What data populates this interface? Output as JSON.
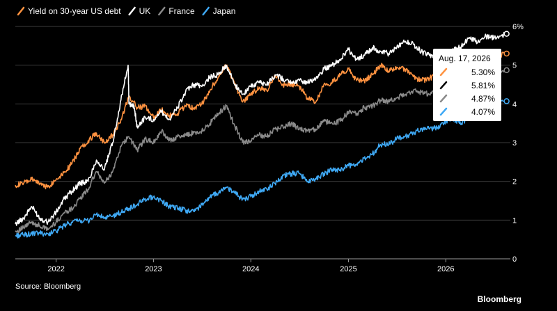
{
  "chart_data": {
    "type": "line",
    "title": "",
    "xlabel": "",
    "ylabel": "",
    "unit": "%",
    "ylim": [
      0,
      6
    ],
    "y_axis_position": "right",
    "y_ticks": [
      0,
      1,
      2,
      3,
      4,
      5,
      6
    ],
    "y_tick_labels": [
      "0",
      "1",
      "2",
      "3",
      "4",
      "5",
      "6%"
    ],
    "xlim": [
      "2021-08-01",
      "2026-08-31"
    ],
    "x_ticks": [
      "2022-01-01",
      "2023-01-01",
      "2024-01-01",
      "2025-01-01",
      "2026-01-01"
    ],
    "x_tick_labels": [
      "2022",
      "2023",
      "2024",
      "2025",
      "2026"
    ],
    "grid": "horizontal",
    "legend_position": "top-left",
    "series": [
      {
        "name": "Yield on 30-year US debt",
        "color": "#ff9240",
        "end_value": 5.3,
        "points": [
          [
            "2021-08-01",
            1.9
          ],
          [
            "2021-09-01",
            1.95
          ],
          [
            "2021-10-01",
            2.05
          ],
          [
            "2021-11-01",
            1.95
          ],
          [
            "2021-12-01",
            1.85
          ],
          [
            "2022-01-01",
            2.05
          ],
          [
            "2022-02-01",
            2.25
          ],
          [
            "2022-03-01",
            2.45
          ],
          [
            "2022-04-01",
            2.85
          ],
          [
            "2022-05-01",
            3.05
          ],
          [
            "2022-06-01",
            3.25
          ],
          [
            "2022-07-01",
            3.0
          ],
          [
            "2022-08-01",
            3.2
          ],
          [
            "2022-09-01",
            3.6
          ],
          [
            "2022-10-01",
            4.2
          ],
          [
            "2022-11-01",
            3.9
          ],
          [
            "2022-12-01",
            3.95
          ],
          [
            "2023-01-01",
            3.65
          ],
          [
            "2023-02-01",
            3.85
          ],
          [
            "2023-03-01",
            3.7
          ],
          [
            "2023-04-01",
            3.75
          ],
          [
            "2023-05-01",
            3.95
          ],
          [
            "2023-06-01",
            3.9
          ],
          [
            "2023-07-01",
            4.0
          ],
          [
            "2023-08-01",
            4.35
          ],
          [
            "2023-09-01",
            4.7
          ],
          [
            "2023-10-01",
            5.0
          ],
          [
            "2023-11-01",
            4.5
          ],
          [
            "2023-12-01",
            4.05
          ],
          [
            "2024-01-01",
            4.25
          ],
          [
            "2024-02-01",
            4.4
          ],
          [
            "2024-03-01",
            4.35
          ],
          [
            "2024-04-01",
            4.75
          ],
          [
            "2024-05-01",
            4.5
          ],
          [
            "2024-06-01",
            4.5
          ],
          [
            "2024-07-01",
            4.45
          ],
          [
            "2024-08-01",
            4.15
          ],
          [
            "2024-09-01",
            4.05
          ],
          [
            "2024-10-01",
            4.5
          ],
          [
            "2024-11-01",
            4.55
          ],
          [
            "2024-12-01",
            4.75
          ],
          [
            "2025-01-01",
            4.9
          ],
          [
            "2025-02-01",
            4.6
          ],
          [
            "2025-03-01",
            4.6
          ],
          [
            "2025-04-01",
            4.75
          ],
          [
            "2025-05-01",
            5.0
          ],
          [
            "2025-06-01",
            4.85
          ],
          [
            "2025-07-01",
            4.95
          ],
          [
            "2025-08-01",
            4.9
          ],
          [
            "2025-09-01",
            4.7
          ],
          [
            "2025-10-01",
            4.6
          ],
          [
            "2025-11-01",
            4.65
          ],
          [
            "2025-12-01",
            4.8
          ],
          [
            "2026-01-01",
            4.85
          ],
          [
            "2026-02-01",
            4.75
          ],
          [
            "2026-03-01",
            4.9
          ],
          [
            "2026-04-01",
            5.0
          ],
          [
            "2026-05-01",
            5.1
          ],
          [
            "2026-06-01",
            5.0
          ],
          [
            "2026-07-01",
            5.2
          ],
          [
            "2026-08-17",
            5.3
          ]
        ]
      },
      {
        "name": "UK",
        "color": "#ffffff",
        "end_value": 5.81,
        "points": [
          [
            "2021-08-01",
            0.9
          ],
          [
            "2021-09-01",
            1.05
          ],
          [
            "2021-10-01",
            1.35
          ],
          [
            "2021-11-01",
            1.05
          ],
          [
            "2021-12-01",
            0.95
          ],
          [
            "2022-01-01",
            1.2
          ],
          [
            "2022-02-01",
            1.55
          ],
          [
            "2022-03-01",
            1.75
          ],
          [
            "2022-04-01",
            1.95
          ],
          [
            "2022-05-01",
            2.0
          ],
          [
            "2022-06-01",
            2.55
          ],
          [
            "2022-07-01",
            2.3
          ],
          [
            "2022-08-01",
            3.0
          ],
          [
            "2022-09-01",
            4.1
          ],
          [
            "2022-09-28",
            5.0
          ],
          [
            "2022-10-01",
            4.0
          ],
          [
            "2022-10-20",
            3.95
          ],
          [
            "2022-11-01",
            3.4
          ],
          [
            "2022-12-01",
            3.65
          ],
          [
            "2023-01-01",
            3.6
          ],
          [
            "2023-02-01",
            3.8
          ],
          [
            "2023-03-01",
            3.6
          ],
          [
            "2023-04-01",
            3.9
          ],
          [
            "2023-05-01",
            4.3
          ],
          [
            "2023-06-01",
            4.5
          ],
          [
            "2023-07-01",
            4.45
          ],
          [
            "2023-08-01",
            4.7
          ],
          [
            "2023-09-01",
            4.75
          ],
          [
            "2023-10-01",
            5.0
          ],
          [
            "2023-11-01",
            4.5
          ],
          [
            "2023-12-01",
            4.25
          ],
          [
            "2024-01-01",
            4.45
          ],
          [
            "2024-02-01",
            4.55
          ],
          [
            "2024-03-01",
            4.5
          ],
          [
            "2024-04-01",
            4.75
          ],
          [
            "2024-05-01",
            4.65
          ],
          [
            "2024-06-01",
            4.55
          ],
          [
            "2024-07-01",
            4.6
          ],
          [
            "2024-08-01",
            4.55
          ],
          [
            "2024-09-01",
            4.65
          ],
          [
            "2024-10-01",
            4.9
          ],
          [
            "2024-11-01",
            5.0
          ],
          [
            "2024-12-01",
            5.15
          ],
          [
            "2025-01-01",
            5.4
          ],
          [
            "2025-02-01",
            5.15
          ],
          [
            "2025-03-01",
            5.25
          ],
          [
            "2025-04-01",
            5.45
          ],
          [
            "2025-05-01",
            5.35
          ],
          [
            "2025-06-01",
            5.3
          ],
          [
            "2025-07-01",
            5.45
          ],
          [
            "2025-08-01",
            5.6
          ],
          [
            "2025-09-01",
            5.55
          ],
          [
            "2025-10-01",
            5.35
          ],
          [
            "2025-11-01",
            5.25
          ],
          [
            "2025-12-01",
            5.2
          ],
          [
            "2026-01-01",
            5.3
          ],
          [
            "2026-02-01",
            5.4
          ],
          [
            "2026-03-01",
            5.5
          ],
          [
            "2026-04-01",
            5.7
          ],
          [
            "2026-05-01",
            5.6
          ],
          [
            "2026-06-01",
            5.75
          ],
          [
            "2026-07-01",
            5.7
          ],
          [
            "2026-08-17",
            5.81
          ]
        ]
      },
      {
        "name": "France",
        "color": "#8a8a8a",
        "end_value": 4.87,
        "points": [
          [
            "2021-08-01",
            0.7
          ],
          [
            "2021-09-01",
            0.8
          ],
          [
            "2021-10-01",
            0.95
          ],
          [
            "2021-11-01",
            0.85
          ],
          [
            "2021-12-01",
            0.75
          ],
          [
            "2022-01-01",
            0.95
          ],
          [
            "2022-02-01",
            1.2
          ],
          [
            "2022-03-01",
            1.3
          ],
          [
            "2022-04-01",
            1.55
          ],
          [
            "2022-05-01",
            1.8
          ],
          [
            "2022-06-01",
            2.25
          ],
          [
            "2022-07-01",
            1.95
          ],
          [
            "2022-08-01",
            2.25
          ],
          [
            "2022-09-01",
            2.9
          ],
          [
            "2022-10-01",
            3.15
          ],
          [
            "2022-11-01",
            2.8
          ],
          [
            "2022-12-01",
            3.1
          ],
          [
            "2023-01-01",
            3.0
          ],
          [
            "2023-02-01",
            3.3
          ],
          [
            "2023-03-01",
            3.05
          ],
          [
            "2023-04-01",
            3.15
          ],
          [
            "2023-05-01",
            3.2
          ],
          [
            "2023-06-01",
            3.25
          ],
          [
            "2023-07-01",
            3.3
          ],
          [
            "2023-08-01",
            3.5
          ],
          [
            "2023-09-01",
            3.75
          ],
          [
            "2023-10-01",
            3.95
          ],
          [
            "2023-11-01",
            3.45
          ],
          [
            "2023-12-01",
            3.0
          ],
          [
            "2024-01-01",
            3.05
          ],
          [
            "2024-02-01",
            3.2
          ],
          [
            "2024-03-01",
            3.15
          ],
          [
            "2024-04-01",
            3.35
          ],
          [
            "2024-05-01",
            3.4
          ],
          [
            "2024-06-01",
            3.5
          ],
          [
            "2024-07-01",
            3.35
          ],
          [
            "2024-08-01",
            3.3
          ],
          [
            "2024-09-01",
            3.35
          ],
          [
            "2024-10-01",
            3.55
          ],
          [
            "2024-11-01",
            3.5
          ],
          [
            "2024-12-01",
            3.55
          ],
          [
            "2025-01-01",
            3.8
          ],
          [
            "2025-02-01",
            3.75
          ],
          [
            "2025-03-01",
            3.9
          ],
          [
            "2025-04-01",
            3.95
          ],
          [
            "2025-05-01",
            4.1
          ],
          [
            "2025-06-01",
            4.05
          ],
          [
            "2025-07-01",
            4.15
          ],
          [
            "2025-08-01",
            4.25
          ],
          [
            "2025-09-01",
            4.35
          ],
          [
            "2025-10-01",
            4.3
          ],
          [
            "2025-11-01",
            4.25
          ],
          [
            "2025-12-01",
            4.3
          ],
          [
            "2026-01-01",
            4.4
          ],
          [
            "2026-02-01",
            4.45
          ],
          [
            "2026-03-01",
            4.55
          ],
          [
            "2026-04-01",
            4.7
          ],
          [
            "2026-05-01",
            4.65
          ],
          [
            "2026-06-01",
            4.75
          ],
          [
            "2026-07-01",
            4.8
          ],
          [
            "2026-08-17",
            4.87
          ]
        ]
      },
      {
        "name": "Japan",
        "color": "#3fa9f5",
        "end_value": 4.07,
        "points": [
          [
            "2021-08-01",
            0.6
          ],
          [
            "2021-09-01",
            0.62
          ],
          [
            "2021-10-01",
            0.64
          ],
          [
            "2021-11-01",
            0.66
          ],
          [
            "2021-12-01",
            0.65
          ],
          [
            "2022-01-01",
            0.72
          ],
          [
            "2022-02-01",
            0.85
          ],
          [
            "2022-03-01",
            0.95
          ],
          [
            "2022-04-01",
            0.98
          ],
          [
            "2022-05-01",
            0.98
          ],
          [
            "2022-06-01",
            1.15
          ],
          [
            "2022-07-01",
            1.05
          ],
          [
            "2022-08-01",
            1.1
          ],
          [
            "2022-09-01",
            1.2
          ],
          [
            "2022-10-01",
            1.3
          ],
          [
            "2022-11-01",
            1.4
          ],
          [
            "2022-12-01",
            1.55
          ],
          [
            "2023-01-01",
            1.6
          ],
          [
            "2023-02-01",
            1.5
          ],
          [
            "2023-03-01",
            1.35
          ],
          [
            "2023-04-01",
            1.3
          ],
          [
            "2023-05-01",
            1.25
          ],
          [
            "2023-06-01",
            1.22
          ],
          [
            "2023-07-01",
            1.4
          ],
          [
            "2023-08-01",
            1.6
          ],
          [
            "2023-09-01",
            1.7
          ],
          [
            "2023-10-01",
            1.85
          ],
          [
            "2023-11-01",
            1.7
          ],
          [
            "2023-12-01",
            1.55
          ],
          [
            "2024-01-01",
            1.6
          ],
          [
            "2024-02-01",
            1.75
          ],
          [
            "2024-03-01",
            1.8
          ],
          [
            "2024-04-01",
            1.95
          ],
          [
            "2024-05-01",
            2.15
          ],
          [
            "2024-06-01",
            2.2
          ],
          [
            "2024-07-01",
            2.2
          ],
          [
            "2024-08-01",
            2.0
          ],
          [
            "2024-09-01",
            2.05
          ],
          [
            "2024-10-01",
            2.2
          ],
          [
            "2024-11-01",
            2.3
          ],
          [
            "2024-12-01",
            2.3
          ],
          [
            "2025-01-01",
            2.4
          ],
          [
            "2025-02-01",
            2.45
          ],
          [
            "2025-03-01",
            2.6
          ],
          [
            "2025-04-01",
            2.7
          ],
          [
            "2025-05-01",
            2.95
          ],
          [
            "2025-06-01",
            2.95
          ],
          [
            "2025-07-01",
            3.1
          ],
          [
            "2025-08-01",
            3.15
          ],
          [
            "2025-09-01",
            3.25
          ],
          [
            "2025-10-01",
            3.35
          ],
          [
            "2025-11-01",
            3.35
          ],
          [
            "2025-12-01",
            3.4
          ],
          [
            "2026-01-01",
            3.55
          ],
          [
            "2026-02-01",
            3.6
          ],
          [
            "2026-03-01",
            3.5
          ],
          [
            "2026-04-01",
            3.7
          ],
          [
            "2026-05-01",
            3.75
          ],
          [
            "2026-06-01",
            3.85
          ],
          [
            "2026-07-01",
            3.95
          ],
          [
            "2026-08-17",
            4.07
          ]
        ]
      }
    ],
    "tooltip": {
      "date": "Aug. 17, 2026",
      "values": [
        "5.30%",
        "5.81%",
        "4.87%",
        "4.07%"
      ]
    }
  },
  "footer": {
    "source": "Source: Bloomberg",
    "brand": "Bloomberg"
  }
}
